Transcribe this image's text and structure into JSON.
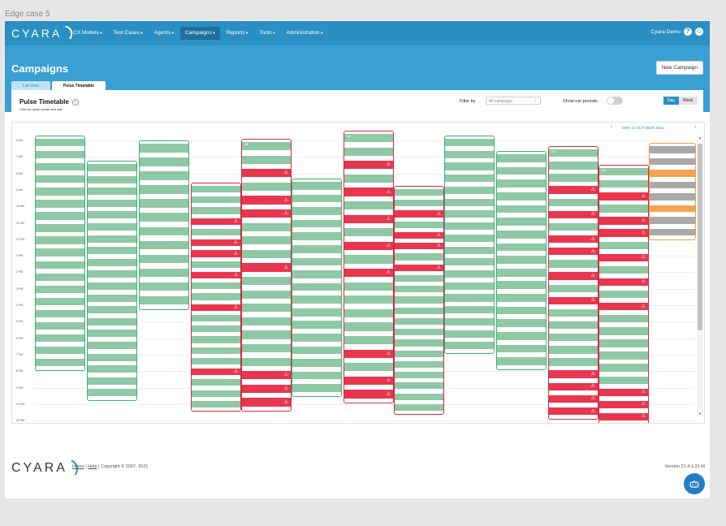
{
  "frame_label": "Edge case 5",
  "navbar": {
    "brand": "CYARA",
    "menu": [
      {
        "label": "CX Models",
        "active": false
      },
      {
        "label": "Test Cases",
        "active": false
      },
      {
        "label": "Agents",
        "active": false
      },
      {
        "label": "Campaigns",
        "active": true
      },
      {
        "label": "Reports",
        "active": false
      },
      {
        "label": "Tools",
        "active": false
      },
      {
        "label": "Administration",
        "active": false
      }
    ],
    "user_name": "Cyara Demo",
    "help_glyph": "?",
    "user_glyph": "☺"
  },
  "header": {
    "title": "Campaigns",
    "new_campaign_label": "New Campaign",
    "tabs": [
      {
        "label": "List View",
        "active": false
      },
      {
        "label": "Pulse Timetable",
        "active": true
      }
    ]
  },
  "panel": {
    "title": "Pulse Timetable",
    "help_glyph": "?",
    "subtitle": "Click for quick create and edit.",
    "filter_label": "Filter by",
    "filter_value": "All campaign",
    "filter_caret": "↕",
    "show_run_label": "Show run periods",
    "view_buttons": [
      {
        "label": "Day",
        "active": true
      },
      {
        "label": "Week",
        "active": false
      }
    ]
  },
  "timetable": {
    "date_label": "MON 11 OCTOBER 2021",
    "prev_glyph": "‹",
    "next_glyph": "›",
    "hours": [
      "6 AM",
      "7 AM",
      "8 AM",
      "9 AM",
      "10 AM",
      "11 AM",
      "12 PM",
      "1 PM",
      "2 PM",
      "3 PM",
      "4 PM",
      "5 PM",
      "6 PM",
      "7 PM",
      "8 PM",
      "9 PM",
      "10 PM",
      "11 PM"
    ],
    "scroll_up_glyph": "▴",
    "scroll_down_glyph": "▾",
    "warning_glyph": "⚠",
    "block_tag": "Alt",
    "campaigns": [
      {
        "status": "green",
        "blocks": "GGGGGGGGGGGGGGGGGGG"
      },
      {
        "status": "green",
        "blocks": "GGGGGGGGGGGGGGGGGGGG"
      },
      {
        "status": "green",
        "blocks": "GGGGGGGGGGGG"
      },
      {
        "status": "red",
        "blocks": "GGGRGRRGRGGRGGGGGRGGG"
      },
      {
        "status": "red",
        "blocks": "GGRGRRGGGRGGGGGGGRRR",
        "tagged": true
      },
      {
        "status": "green",
        "blocks": "GGGGGGGGGGGGGGGGG"
      },
      {
        "status": "red",
        "blocks": "GGRGRGRGRGRGGGGGRGRR",
        "tagged": true
      },
      {
        "status": "red",
        "blocks": "GGRGRRGRGGGGGGGGGGGGG"
      },
      {
        "status": "green",
        "blocks": "GGGGGGGGGGGGGGGGGG"
      },
      {
        "status": "green",
        "blocks": "GGGGGGGGGGGGGGGGG"
      },
      {
        "status": "red",
        "blocks": "GGGRGRGRRGRGRGGGGGRRRR",
        "tagged": true
      },
      {
        "status": "red",
        "blocks": "GGRGRRGRGRGRGGGGGGRRRR",
        "tagged": true
      },
      {
        "status": "orange",
        "blocks": "YYOYYOYY"
      }
    ]
  },
  "footer": {
    "logo": "CYARA",
    "home_label": "Home",
    "separator": "|",
    "help_label": "Help",
    "copyright": "Copyright © 2007- 2021",
    "version": "Version 21.4.1.31-M"
  },
  "colors": {
    "navbar": "#2a8fc3",
    "header": "#3a9fd2",
    "green": "#8fc8a5",
    "red": "#e8364f",
    "gray": "#a9a9a9",
    "orange": "#f5a351"
  }
}
